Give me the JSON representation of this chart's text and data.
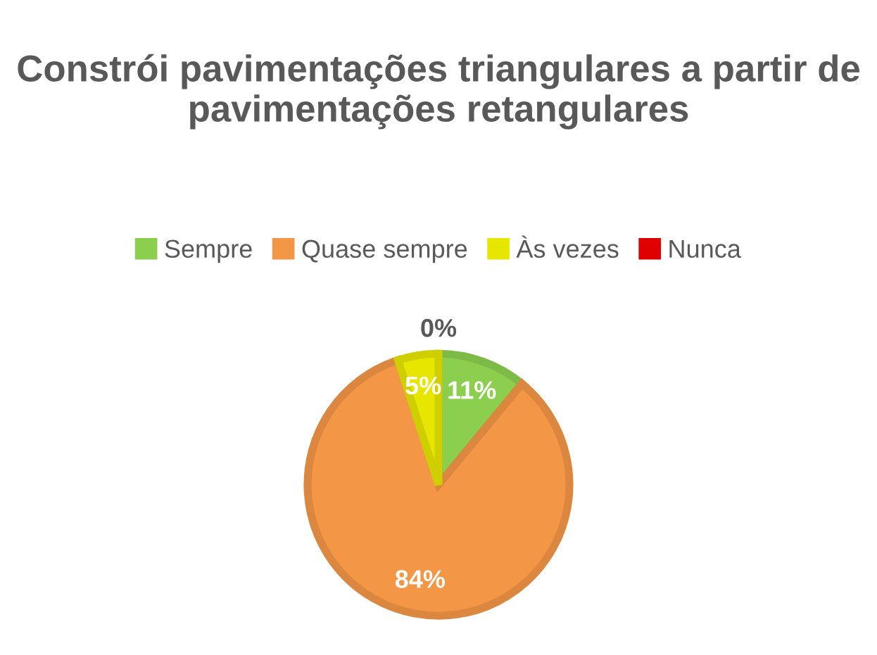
{
  "chart_data": {
    "type": "pie",
    "title": "Constrói pavimentações triangulares a partir de pavimentações retangulares",
    "categories": [
      "Sempre",
      "Quase sempre",
      "Às vezes",
      "Nunca"
    ],
    "values": [
      11,
      84,
      5,
      0
    ],
    "colors": [
      "#8ccf4f",
      "#f39646",
      "#e6e600",
      "#e00000"
    ],
    "value_labels": [
      "11%",
      "84%",
      "5%",
      "0%"
    ],
    "legend": "top"
  }
}
